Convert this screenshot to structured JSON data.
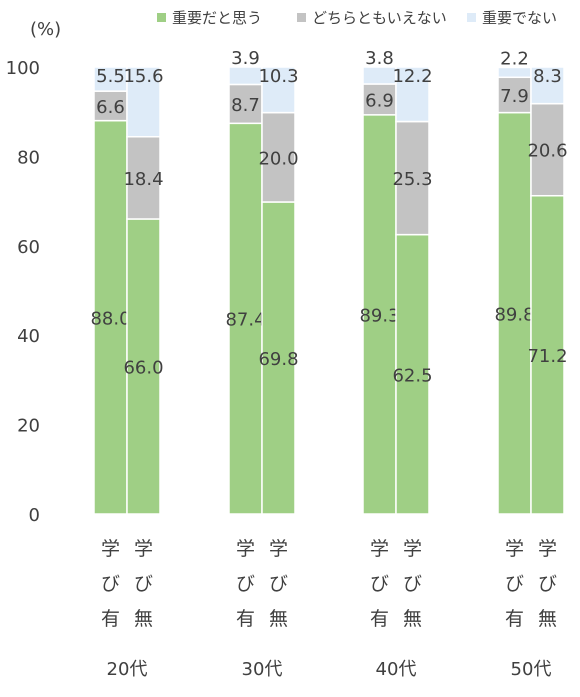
{
  "chart_data": {
    "type": "bar",
    "stacked": true,
    "ylabel": "(%)",
    "ylim": [
      0,
      100
    ],
    "yticks": [
      0,
      20,
      40,
      60,
      80,
      100
    ],
    "grid": false,
    "legend_position": "top",
    "groups": [
      {
        "label": "20代",
        "bars": [
          {
            "label": "学び有",
            "values": [
              88.0,
              6.6,
              5.5
            ]
          },
          {
            "label": "学び無",
            "values": [
              66.0,
              18.4,
              15.6
            ]
          }
        ]
      },
      {
        "label": "30代",
        "bars": [
          {
            "label": "学び有",
            "values": [
              87.4,
              8.7,
              3.9
            ]
          },
          {
            "label": "学び無",
            "values": [
              69.8,
              20.0,
              10.3
            ]
          }
        ]
      },
      {
        "label": "40代",
        "bars": [
          {
            "label": "学び有",
            "values": [
              89.3,
              6.9,
              3.8
            ]
          },
          {
            "label": "学び無",
            "values": [
              62.5,
              25.3,
              12.2
            ]
          }
        ]
      },
      {
        "label": "50代",
        "bars": [
          {
            "label": "学び有",
            "values": [
              89.8,
              7.9,
              2.2
            ]
          },
          {
            "label": "学び無",
            "values": [
              71.2,
              20.6,
              8.3
            ]
          }
        ]
      }
    ],
    "series": [
      {
        "name": "重要だと思う",
        "color": "#9fcf85"
      },
      {
        "name": "どちらともいえない",
        "color": "#c3c3c3"
      },
      {
        "name": "重要でない",
        "color": "#deebf8"
      }
    ]
  }
}
